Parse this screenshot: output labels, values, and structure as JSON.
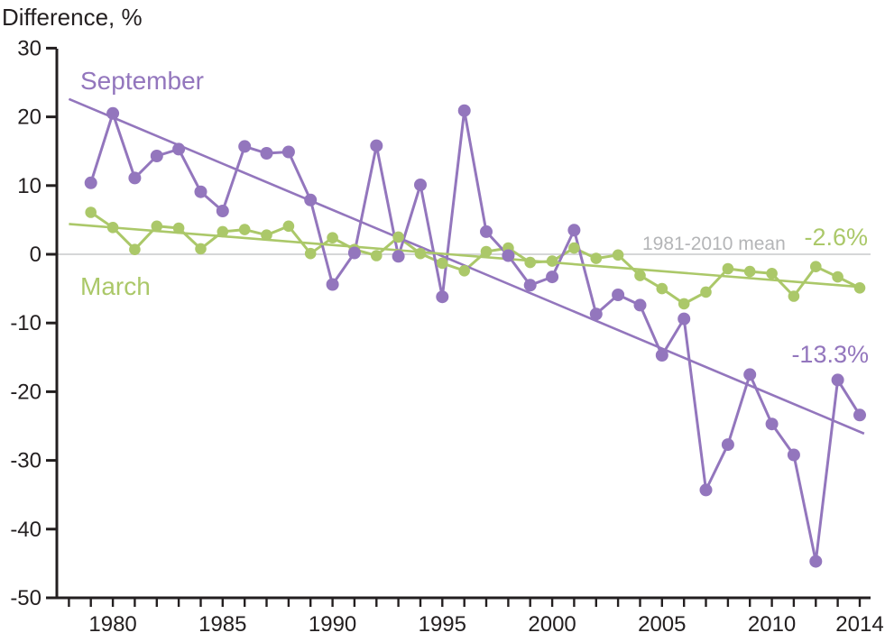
{
  "title": "Difference, %",
  "annotations": {
    "september_label": "September",
    "march_label": "March",
    "mean_label": "1981-2010 mean",
    "september_trend_label": "-13.3%",
    "march_trend_label": "-2.6%"
  },
  "colors": {
    "september": "#9376bd",
    "march": "#abc869",
    "zero_line": "#c9cacb",
    "mean_text": "#b4b5b7",
    "axis": "#231f20"
  },
  "chart_data": {
    "type": "line",
    "title": "Difference, %",
    "ylabel": "Difference, %",
    "ylim": [
      -50,
      30
    ],
    "yticks": [
      30,
      20,
      10,
      0,
      -10,
      -20,
      -30,
      -40,
      -50
    ],
    "xticks_labeled": [
      1980,
      1985,
      1990,
      1995,
      2000,
      2005,
      2010,
      2014
    ],
    "xtick_minor_every_year_range": [
      1978,
      2014
    ],
    "grid": "off",
    "legend_position": "inline-labels",
    "x": [
      1979,
      1980,
      1981,
      1982,
      1983,
      1984,
      1985,
      1986,
      1987,
      1988,
      1989,
      1990,
      1991,
      1992,
      1993,
      1994,
      1995,
      1996,
      1997,
      1998,
      1999,
      2000,
      2001,
      2002,
      2003,
      2004,
      2005,
      2006,
      2007,
      2008,
      2009,
      2010,
      2011,
      2012,
      2013,
      2014
    ],
    "series": [
      {
        "name": "September",
        "values": [
          10.4,
          20.5,
          11.1,
          14.3,
          15.3,
          9.1,
          6.3,
          15.7,
          14.7,
          14.9,
          7.9,
          -4.4,
          0.2,
          15.8,
          -0.3,
          10.1,
          -6.2,
          20.9,
          3.3,
          -0.2,
          -4.5,
          -3.3,
          3.5,
          -8.7,
          -5.9,
          -7.4,
          -14.7,
          -9.4,
          -34.3,
          -27.7,
          -17.5,
          -24.7,
          -29.2,
          -44.7,
          -18.3,
          -23.4
        ]
      },
      {
        "name": "March",
        "values": [
          6.1,
          3.9,
          0.7,
          4.1,
          3.8,
          0.8,
          3.3,
          3.6,
          2.8,
          4.1,
          0.1,
          2.4,
          0.7,
          -0.2,
          2.5,
          0.1,
          -1.3,
          -2.4,
          0.4,
          0.9,
          -1.2,
          -1.0,
          0.9,
          -0.6,
          -0.1,
          -3.1,
          -5.0,
          -7.2,
          -5.5,
          -2.1,
          -2.5,
          -2.8,
          -6.1,
          -1.8,
          -3.3,
          -4.9
        ]
      }
    ],
    "trend_lines": [
      {
        "series": "September",
        "label": "-13.3%",
        "x_start": 1978,
        "y_start": 22.6,
        "x_end": 2014.2,
        "y_end": -26.1
      },
      {
        "series": "March",
        "label": "-2.6%",
        "x_start": 1978,
        "y_start": 4.4,
        "x_end": 2014.2,
        "y_end": -4.8
      }
    ],
    "reference_line": {
      "label": "1981-2010 mean",
      "value": 0
    }
  }
}
